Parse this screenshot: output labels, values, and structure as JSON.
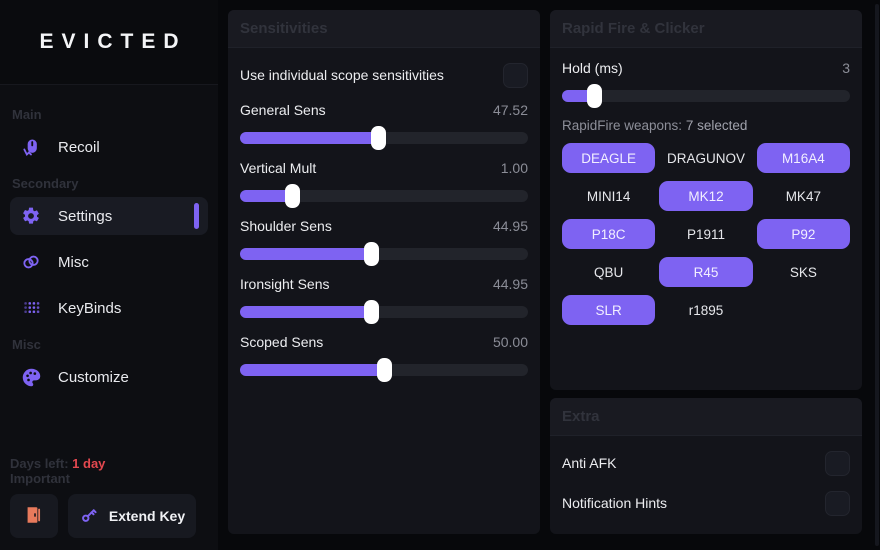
{
  "app": {
    "title": "EVICTED"
  },
  "colors": {
    "accent": "#7e63f2",
    "danger": "#e3484f",
    "door_icon": "#e87a5c"
  },
  "sidebar": {
    "sections": {
      "main_label": "Main",
      "secondary_label": "Secondary",
      "misc_label": "Misc"
    },
    "items": {
      "recoil": {
        "label": "Recoil",
        "icon": "mouse-click-icon",
        "active": false
      },
      "settings": {
        "label": "Settings",
        "icon": "gear-icon",
        "active": true
      },
      "misc": {
        "label": "Misc",
        "icon": "rings-icon",
        "active": false
      },
      "keybinds": {
        "label": "KeyBinds",
        "icon": "keypad-icon",
        "active": false
      },
      "customize": {
        "label": "Customize",
        "icon": "palette-icon",
        "active": false
      }
    },
    "footer": {
      "days_left_label": "Days left:",
      "days_left_value": "1 day",
      "important_label": "Important",
      "exit_icon": "door-icon",
      "extend_key_label": "Extend Key",
      "key_icon": "key-icon"
    }
  },
  "sensitivities": {
    "title": "Sensitivities",
    "scope_toggle": {
      "label": "Use individual scope sensitivities",
      "checked": false
    },
    "sliders": [
      {
        "label": "General Sens",
        "value": "47.52",
        "pct": 48
      },
      {
        "label": "Vertical Mult",
        "value": "1.00",
        "pct": 18
      },
      {
        "label": "Shoulder Sens",
        "value": "44.95",
        "pct": 45.5
      },
      {
        "label": "Ironsight Sens",
        "value": "44.95",
        "pct": 45.5
      },
      {
        "label": "Scoped Sens",
        "value": "50.00",
        "pct": 50
      }
    ]
  },
  "rapidfire": {
    "title": "Rapid Fire & Clicker",
    "hold": {
      "label": "Hold (ms)",
      "value": "3",
      "pct": 11
    },
    "weapons_caption_label": "RapidFire weapons:",
    "weapons_caption_count": "7 selected",
    "weapons": [
      {
        "name": "DEAGLE",
        "selected": true
      },
      {
        "name": "DRAGUNOV",
        "selected": false
      },
      {
        "name": "M16A4",
        "selected": true
      },
      {
        "name": "MINI14",
        "selected": false
      },
      {
        "name": "MK12",
        "selected": true
      },
      {
        "name": "MK47",
        "selected": false
      },
      {
        "name": "P18C",
        "selected": true
      },
      {
        "name": "P1911",
        "selected": false
      },
      {
        "name": "P92",
        "selected": true
      },
      {
        "name": "QBU",
        "selected": false
      },
      {
        "name": "R45",
        "selected": true
      },
      {
        "name": "SKS",
        "selected": false
      },
      {
        "name": "SLR",
        "selected": true
      },
      {
        "name": "r1895",
        "selected": false
      }
    ]
  },
  "extra": {
    "title": "Extra",
    "toggles": [
      {
        "label": "Anti AFK",
        "checked": false
      },
      {
        "label": "Notification Hints",
        "checked": false
      }
    ]
  }
}
